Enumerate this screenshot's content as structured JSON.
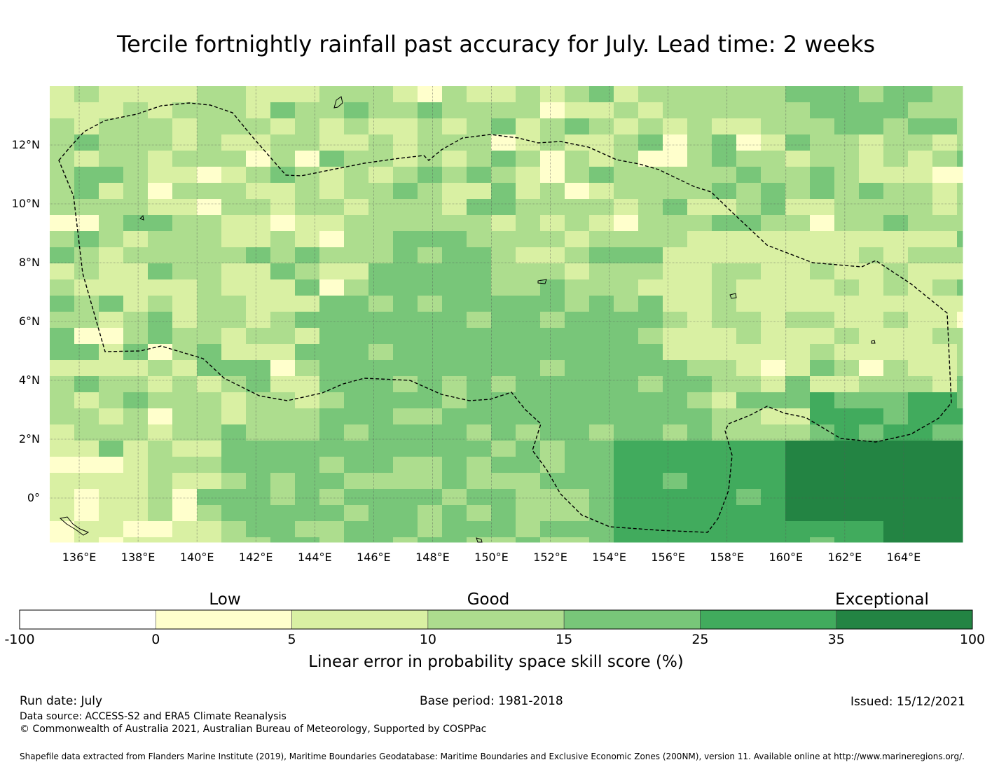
{
  "title": "Tercile fortnightly rainfall past accuracy for July. Lead time: 2 weeks",
  "map": {
    "lon_range": [
      135,
      166
    ],
    "lat_range": [
      -1.5,
      14
    ],
    "lon_ticks": [
      "136°E",
      "138°E",
      "140°E",
      "142°E",
      "144°E",
      "146°E",
      "148°E",
      "150°E",
      "152°E",
      "154°E",
      "156°E",
      "158°E",
      "160°E",
      "162°E",
      "164°E"
    ],
    "lat_ticks": [
      "12°N",
      "10°N",
      "8°N",
      "6°N",
      "4°N",
      "2°N",
      "0°"
    ],
    "grid": true,
    "colors": [
      "#ffffcc",
      "#d9f0a3",
      "#addd8e",
      "#78c679",
      "#41ab5d",
      "#238443"
    ]
  },
  "colorbar": {
    "category_labels": [
      "Low",
      "Good",
      "Exceptional"
    ],
    "tick_labels": [
      "-100",
      "0",
      "5",
      "10",
      "15",
      "25",
      "35",
      "100"
    ],
    "colors": [
      "#ffffff",
      "#ffffcc",
      "#d9f0a3",
      "#addd8e",
      "#78c679",
      "#41ab5d",
      "#238443"
    ],
    "label": "Linear error in probability space skill score (%)"
  },
  "footer": {
    "run_date": "Run date: July",
    "base_period": "Base period: 1981-2018",
    "issued": "Issued: 15/12/2021",
    "data_source": "Data source: ACCESS-S2 and ERA5 Climate Reanalysis",
    "copyright": "© Commonwealth of Australia 2021, Australian Bureau of Meteorology, Supported by COSPPac",
    "shapefile": "Shapefile data extracted from Flanders Marine Institute (2019), Maritime Boundaries Geodatabase: Maritime Boundaries and Exclusive Economic Zones (200NM), version 11. Available online at http://www.marineregions.org/."
  }
}
